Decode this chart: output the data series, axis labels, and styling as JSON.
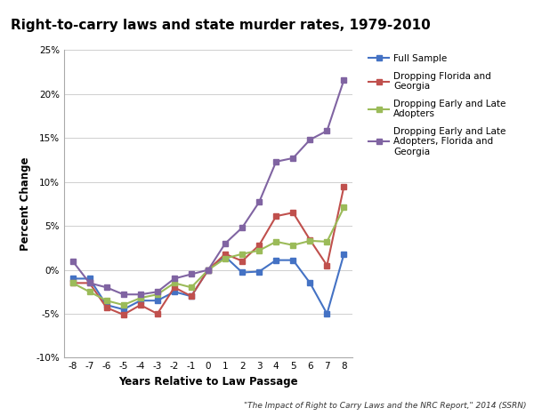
{
  "title": "Right-to-carry laws and state murder rates, 1979-2010",
  "xlabel": "Years Relative to Law Passage",
  "ylabel": "Percent Change",
  "footnote": "\"The Impact of Right to Carry Laws and the NRC Report,\" 2014 (SSRN)",
  "x": [
    -8,
    -7,
    -6,
    -5,
    -4,
    -3,
    -2,
    -1,
    0,
    1,
    2,
    3,
    4,
    5,
    6,
    7,
    8
  ],
  "series": [
    {
      "label": "Full Sample",
      "color": "#4472C4",
      "marker": "s",
      "values": [
        -1.0,
        -1.0,
        -4.0,
        -4.5,
        -3.5,
        -3.5,
        -2.5,
        -3.0,
        0.0,
        1.5,
        -0.3,
        -0.2,
        1.1,
        1.1,
        -1.5,
        -5.0,
        1.8
      ]
    },
    {
      "label": "Dropping Florida and\nGeorgia",
      "color": "#C0504D",
      "marker": "s",
      "values": [
        -1.5,
        -1.5,
        -4.3,
        -5.1,
        -4.0,
        -5.0,
        -2.0,
        -3.0,
        0.0,
        1.8,
        1.0,
        2.8,
        6.1,
        6.5,
        3.4,
        0.5,
        9.5
      ]
    },
    {
      "label": "Dropping Early and Late\nAdopters",
      "color": "#9BBB59",
      "marker": "s",
      "values": [
        -1.5,
        -2.5,
        -3.5,
        -4.0,
        -3.2,
        -2.8,
        -1.5,
        -2.0,
        0.0,
        1.3,
        1.8,
        2.2,
        3.2,
        2.8,
        3.3,
        3.2,
        7.1
      ]
    },
    {
      "label": "Dropping Early and Late\nAdopters, Florida and\nGeorgia",
      "color": "#8064A2",
      "marker": "s",
      "values": [
        1.0,
        -1.5,
        -2.0,
        -2.8,
        -2.8,
        -2.5,
        -1.0,
        -0.5,
        0.0,
        3.0,
        4.8,
        7.7,
        12.3,
        12.7,
        14.8,
        15.8,
        21.6
      ]
    }
  ],
  "ylim": [
    -10,
    25
  ],
  "yticks": [
    -10,
    -5,
    0,
    5,
    10,
    15,
    20,
    25
  ],
  "background_color": "#FFFFFF",
  "grid_color": "#C8C8C8"
}
